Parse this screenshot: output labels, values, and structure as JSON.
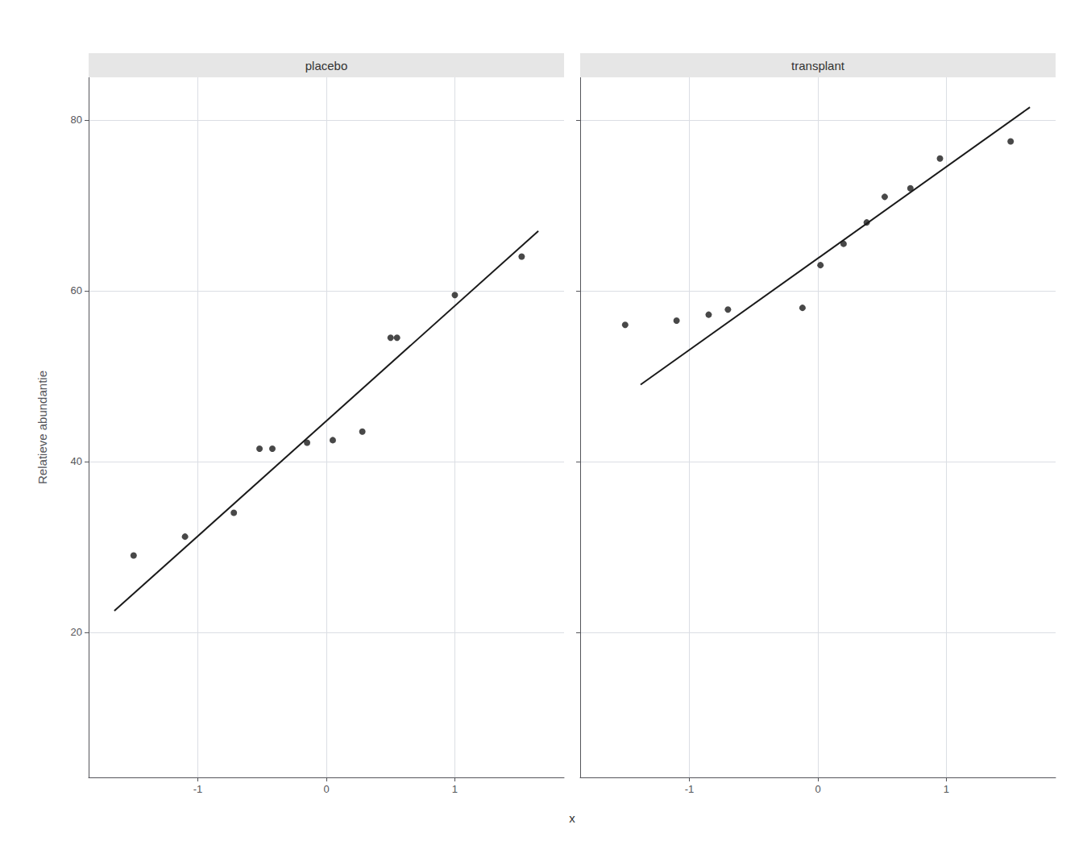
{
  "chart_data": [
    {
      "type": "scatter",
      "title": "placebo",
      "ylabel": "Relatieve abundantie",
      "xlabel": "x",
      "xlim": [
        -1.85,
        1.85
      ],
      "xticks": [
        -1,
        0,
        1
      ],
      "ylim": [
        3,
        85
      ],
      "yticks": [
        20,
        40,
        60,
        80
      ],
      "grid": true,
      "series": [
        {
          "type": "scatter",
          "color": "#1A1A1A",
          "x": [
            -1.5,
            -1.1,
            -0.72,
            -0.52,
            -0.42,
            -0.15,
            0.05,
            0.28,
            0.5,
            0.55,
            1.0,
            1.52
          ],
          "values": [
            29.0,
            31.2,
            34.0,
            41.5,
            41.5,
            42.2,
            42.5,
            43.5,
            54.5,
            54.5,
            59.5,
            64.0
          ]
        },
        {
          "type": "line",
          "color": "#1A1A1A",
          "x": [
            -1.65,
            1.65
          ],
          "values": [
            22.5,
            67.0
          ]
        }
      ]
    },
    {
      "type": "scatter",
      "title": "transplant",
      "xlim": [
        -1.85,
        1.85
      ],
      "xticks": [
        -1,
        0,
        1
      ],
      "ylim": [
        3,
        85
      ],
      "yticks": [
        20,
        40,
        60,
        80
      ],
      "grid": true,
      "tick_labels": "x",
      "series": [
        {
          "type": "scatter",
          "color": "#1A1A1A",
          "x": [
            -1.5,
            -1.1,
            -0.85,
            -0.7,
            -0.12,
            0.02,
            0.2,
            0.38,
            0.52,
            0.72,
            0.95,
            1.5
          ],
          "values": [
            56.0,
            56.5,
            57.2,
            57.8,
            58.0,
            63.0,
            65.5,
            68.0,
            71.0,
            72.0,
            75.5,
            77.5
          ]
        },
        {
          "type": "line",
          "color": "#1A1A1A",
          "x": [
            -1.38,
            1.65
          ],
          "values": [
            49.0,
            81.5
          ]
        }
      ]
    }
  ]
}
